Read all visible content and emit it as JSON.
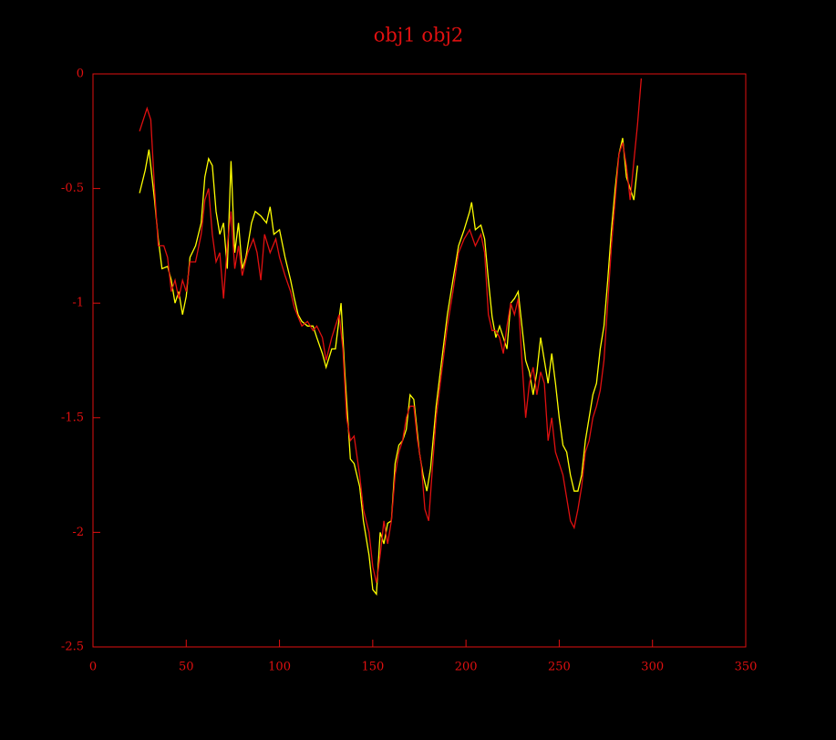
{
  "chart_data": {
    "type": "line",
    "title": "obj1 obj2",
    "xlim": [
      0,
      350
    ],
    "xticks": [
      0,
      50,
      100,
      150,
      200,
      250,
      300,
      350
    ],
    "ylim": [
      -2.5,
      0
    ],
    "yticks": [
      -2.5,
      -2,
      -1.5,
      -1,
      -0.5,
      0
    ],
    "axis_color": "#e01010",
    "series": [
      {
        "color": "#ffff00",
        "x": [
          25,
          28,
          30,
          33,
          35,
          37,
          40,
          42,
          44,
          46,
          48,
          50,
          52,
          55,
          58,
          60,
          62,
          64,
          66,
          68,
          70,
          72,
          74,
          76,
          78,
          80,
          82,
          85,
          87,
          90,
          93,
          95,
          97,
          100,
          103,
          106,
          108,
          110,
          112,
          115,
          118,
          120,
          123,
          125,
          128,
          130,
          133,
          135,
          138,
          140,
          143,
          145,
          148,
          150,
          152,
          154,
          156,
          158,
          160,
          162,
          164,
          166,
          168,
          170,
          172,
          175,
          177,
          179,
          181,
          184,
          187,
          190,
          193,
          196,
          199,
          202,
          203,
          205,
          208,
          210,
          212,
          214,
          216,
          218,
          220,
          222,
          224,
          226,
          228,
          230,
          232,
          234,
          236,
          238,
          240,
          242,
          244,
          246,
          248,
          250,
          252,
          254,
          256,
          258,
          260,
          262,
          264,
          266,
          268,
          270,
          272,
          274,
          276,
          278,
          280,
          282,
          284,
          286,
          288,
          290,
          292
        ],
        "values": [
          -0.52,
          -0.42,
          -0.33,
          -0.55,
          -0.72,
          -0.85,
          -0.84,
          -0.9,
          -1.0,
          -0.95,
          -1.05,
          -0.97,
          -0.8,
          -0.75,
          -0.65,
          -0.45,
          -0.37,
          -0.4,
          -0.6,
          -0.7,
          -0.65,
          -0.85,
          -0.38,
          -0.78,
          -0.65,
          -0.85,
          -0.8,
          -0.65,
          -0.6,
          -0.62,
          -0.65,
          -0.58,
          -0.7,
          -0.68,
          -0.8,
          -0.9,
          -0.98,
          -1.05,
          -1.08,
          -1.1,
          -1.1,
          -1.15,
          -1.22,
          -1.28,
          -1.2,
          -1.2,
          -1.0,
          -1.3,
          -1.68,
          -1.7,
          -1.8,
          -1.95,
          -2.1,
          -2.25,
          -2.27,
          -2.0,
          -2.05,
          -1.96,
          -1.95,
          -1.7,
          -1.62,
          -1.6,
          -1.55,
          -1.4,
          -1.42,
          -1.65,
          -1.75,
          -1.82,
          -1.72,
          -1.45,
          -1.25,
          -1.05,
          -0.9,
          -0.75,
          -0.68,
          -0.6,
          -0.56,
          -0.68,
          -0.66,
          -0.72,
          -0.9,
          -1.06,
          -1.15,
          -1.1,
          -1.15,
          -1.2,
          -1.0,
          -0.98,
          -0.95,
          -1.1,
          -1.25,
          -1.3,
          -1.4,
          -1.3,
          -1.15,
          -1.25,
          -1.35,
          -1.22,
          -1.35,
          -1.5,
          -1.62,
          -1.65,
          -1.75,
          -1.82,
          -1.82,
          -1.75,
          -1.6,
          -1.5,
          -1.4,
          -1.35,
          -1.2,
          -1.1,
          -0.9,
          -0.68,
          -0.5,
          -0.35,
          -0.28,
          -0.45,
          -0.5,
          -0.55,
          -0.4
        ]
      },
      {
        "color": "#e01010",
        "x": [
          25,
          27,
          29,
          31,
          33,
          35,
          38,
          40,
          42,
          44,
          46,
          48,
          50,
          52,
          55,
          58,
          60,
          62,
          64,
          66,
          68,
          70,
          72,
          74,
          76,
          78,
          80,
          83,
          86,
          88,
          90,
          92,
          95,
          98,
          100,
          103,
          106,
          108,
          110,
          112,
          115,
          118,
          120,
          123,
          125,
          128,
          130,
          132,
          134,
          136,
          138,
          140,
          143,
          145,
          148,
          150,
          152,
          154,
          156,
          158,
          160,
          162,
          164,
          166,
          168,
          170,
          172,
          174,
          176,
          178,
          180,
          182,
          184,
          187,
          190,
          193,
          196,
          199,
          202,
          205,
          208,
          210,
          212,
          214,
          216,
          218,
          220,
          222,
          224,
          226,
          228,
          230,
          232,
          234,
          236,
          238,
          240,
          242,
          244,
          246,
          248,
          250,
          252,
          254,
          256,
          258,
          260,
          262,
          264,
          266,
          268,
          270,
          272,
          274,
          276,
          278,
          280,
          282,
          284,
          286,
          288,
          290,
          292,
          294
        ],
        "values": [
          -0.25,
          -0.2,
          -0.15,
          -0.2,
          -0.5,
          -0.75,
          -0.75,
          -0.8,
          -0.95,
          -0.9,
          -0.98,
          -0.9,
          -0.95,
          -0.82,
          -0.82,
          -0.7,
          -0.55,
          -0.5,
          -0.7,
          -0.82,
          -0.78,
          -0.98,
          -0.75,
          -0.6,
          -0.85,
          -0.75,
          -0.88,
          -0.78,
          -0.72,
          -0.78,
          -0.9,
          -0.7,
          -0.78,
          -0.72,
          -0.8,
          -0.88,
          -0.95,
          -1.02,
          -1.06,
          -1.1,
          -1.08,
          -1.12,
          -1.1,
          -1.15,
          -1.25,
          -1.15,
          -1.1,
          -1.05,
          -1.2,
          -1.5,
          -1.6,
          -1.58,
          -1.75,
          -1.9,
          -2.0,
          -2.15,
          -2.22,
          -2.1,
          -1.95,
          -2.05,
          -1.95,
          -1.75,
          -1.65,
          -1.6,
          -1.5,
          -1.45,
          -1.45,
          -1.6,
          -1.7,
          -1.9,
          -1.95,
          -1.72,
          -1.5,
          -1.3,
          -1.1,
          -0.95,
          -0.78,
          -0.72,
          -0.68,
          -0.75,
          -0.7,
          -0.78,
          -1.05,
          -1.12,
          -1.12,
          -1.15,
          -1.22,
          -1.1,
          -1.0,
          -1.05,
          -0.98,
          -1.25,
          -1.5,
          -1.35,
          -1.28,
          -1.4,
          -1.3,
          -1.35,
          -1.6,
          -1.5,
          -1.65,
          -1.7,
          -1.75,
          -1.85,
          -1.95,
          -1.98,
          -1.9,
          -1.8,
          -1.65,
          -1.6,
          -1.5,
          -1.45,
          -1.38,
          -1.25,
          -1.0,
          -0.75,
          -0.55,
          -0.35,
          -0.3,
          -0.4,
          -0.55,
          -0.38,
          -0.22,
          -0.02
        ]
      }
    ]
  }
}
